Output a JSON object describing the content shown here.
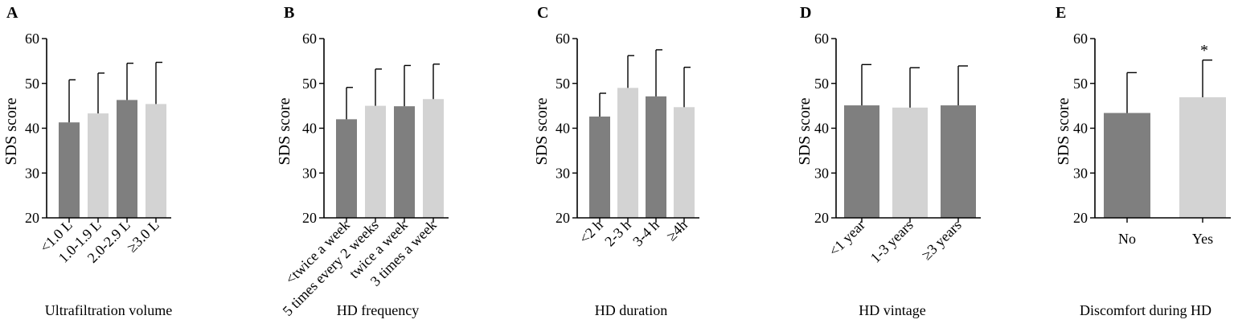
{
  "colors": {
    "dark": "#7f7f7f",
    "light": "#d3d3d3",
    "axis": "#000000"
  },
  "chart_data": [
    {
      "type": "bar",
      "panel": "A",
      "xlabel": "Ultrafiltration volume",
      "ylabel": "SDS score",
      "ylim": [
        20,
        60
      ],
      "yticks": [
        20,
        30,
        40,
        50,
        60
      ],
      "categories": [
        "<1.0 L",
        "1.0-1.9 L",
        "2.0-2.9 L",
        "≥3.0 L"
      ],
      "values": [
        41.3,
        43.3,
        46.3,
        45.4
      ],
      "errors": [
        9.5,
        9.0,
        8.2,
        9.3
      ],
      "shades": [
        "dark",
        "light",
        "dark",
        "light"
      ],
      "significance": [
        "",
        "",
        "",
        ""
      ],
      "rotated_labels": true
    },
    {
      "type": "bar",
      "panel": "B",
      "xlabel": "HD frequency",
      "ylabel": "SDS score",
      "ylim": [
        20,
        60
      ],
      "yticks": [
        20,
        30,
        40,
        50,
        60
      ],
      "categories": [
        "<twice a week",
        "5 times every 2 weeks",
        "twice a week",
        "3 times a week"
      ],
      "values": [
        42.0,
        45.0,
        44.9,
        46.5
      ],
      "errors": [
        7.1,
        8.2,
        9.1,
        7.8
      ],
      "shades": [
        "dark",
        "light",
        "dark",
        "light"
      ],
      "significance": [
        "",
        "",
        "",
        ""
      ],
      "rotated_labels": true
    },
    {
      "type": "bar",
      "panel": "C",
      "xlabel": "HD duration",
      "ylabel": "SDS score",
      "ylim": [
        20,
        60
      ],
      "yticks": [
        20,
        30,
        40,
        50,
        60
      ],
      "categories": [
        "<2 h",
        "2-3 h",
        "3-4 h",
        "≥4h"
      ],
      "values": [
        42.6,
        49.0,
        47.1,
        44.7
      ],
      "errors": [
        5.2,
        7.2,
        10.4,
        8.9
      ],
      "shades": [
        "dark",
        "light",
        "dark",
        "light"
      ],
      "significance": [
        "",
        "",
        "",
        ""
      ],
      "rotated_labels": true
    },
    {
      "type": "bar",
      "panel": "D",
      "xlabel": "HD vintage",
      "ylabel": "SDS score",
      "ylim": [
        20,
        60
      ],
      "yticks": [
        20,
        30,
        40,
        50,
        60
      ],
      "categories": [
        "<1 year",
        "1-3 years",
        "≥3 years"
      ],
      "values": [
        45.1,
        44.6,
        45.1
      ],
      "errors": [
        9.1,
        8.9,
        8.8
      ],
      "shades": [
        "dark",
        "light",
        "dark"
      ],
      "significance": [
        "",
        "",
        ""
      ],
      "rotated_labels": true
    },
    {
      "type": "bar",
      "panel": "E",
      "xlabel": "Discomfort during HD",
      "ylabel": "SDS score",
      "ylim": [
        20,
        60
      ],
      "yticks": [
        20,
        30,
        40,
        50,
        60
      ],
      "categories": [
        "No",
        "Yes"
      ],
      "values": [
        43.4,
        46.9
      ],
      "errors": [
        9.0,
        8.3
      ],
      "shades": [
        "dark",
        "light"
      ],
      "significance": [
        "",
        "*"
      ],
      "rotated_labels": false
    }
  ]
}
